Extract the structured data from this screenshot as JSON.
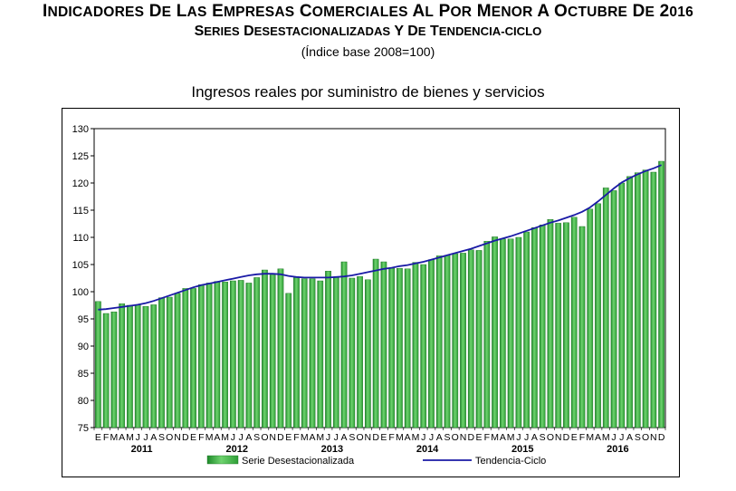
{
  "header": {
    "title": "Indicadores de las Empresas Comerciales al por Menor a octubre de 2016",
    "subtitle": "Series desestacionalizadas y de tendencia-ciclo",
    "base": "(Índice base 2008=100)"
  },
  "colors": {
    "bar": "#3cb043",
    "line": "#1a1aa6",
    "plot_bg": "#ffffff",
    "grid": "#000000"
  },
  "chart_data": {
    "type": "bar",
    "title": "Ingresos reales por suministro de bienes y servicios",
    "xlabel": "",
    "ylabel": "",
    "ylim": [
      75,
      130
    ],
    "yticks": [
      75,
      80,
      85,
      90,
      95,
      100,
      105,
      110,
      115,
      120,
      125,
      130
    ],
    "grid": false,
    "legend_position": "bottom",
    "month_labels": [
      "E",
      "F",
      "M",
      "A",
      "M",
      "J",
      "J",
      "A",
      "S",
      "O",
      "N",
      "D"
    ],
    "years": [
      "2011",
      "2012",
      "2013",
      "2014",
      "2015",
      "2016"
    ],
    "series": [
      {
        "name": "Serie Desestacionalizada",
        "kind": "bar",
        "values": [
          98.2,
          96.0,
          96.3,
          97.8,
          97.5,
          97.6,
          97.3,
          97.6,
          98.9,
          99.0,
          99.7,
          100.6,
          100.6,
          101.3,
          101.6,
          101.9,
          101.8,
          102.0,
          102.1,
          101.6,
          102.6,
          104.0,
          103.1,
          104.2,
          99.7,
          102.6,
          102.4,
          102.4,
          102.0,
          103.8,
          102.7,
          105.5,
          102.5,
          102.8,
          102.2,
          106.0,
          105.5,
          104.3,
          104.3,
          104.2,
          105.4,
          105.0,
          105.9,
          106.6,
          106.7,
          107.0,
          107.1,
          107.7,
          107.6,
          109.3,
          110.1,
          109.7,
          109.7,
          110.0,
          111.0,
          111.8,
          112.3,
          113.3,
          112.6,
          112.7,
          113.7,
          112.0,
          115.2,
          116.2,
          119.1,
          118.6,
          120.0,
          121.2,
          121.9,
          122.4,
          122.0,
          124.0
        ]
      },
      {
        "name": "Tendencia-Ciclo",
        "kind": "line",
        "values": [
          96.7,
          96.8,
          97.0,
          97.2,
          97.4,
          97.6,
          97.9,
          98.3,
          98.8,
          99.3,
          99.8,
          100.3,
          100.8,
          101.2,
          101.5,
          101.8,
          102.1,
          102.4,
          102.7,
          103.0,
          103.2,
          103.3,
          103.3,
          103.2,
          102.9,
          102.7,
          102.6,
          102.6,
          102.6,
          102.6,
          102.7,
          102.8,
          103.0,
          103.3,
          103.6,
          103.9,
          104.2,
          104.4,
          104.7,
          104.9,
          105.2,
          105.5,
          105.9,
          106.3,
          106.7,
          107.1,
          107.5,
          107.9,
          108.4,
          108.9,
          109.4,
          109.8,
          110.2,
          110.7,
          111.2,
          111.7,
          112.2,
          112.7,
          113.1,
          113.6,
          114.1,
          114.7,
          115.5,
          116.6,
          117.8,
          119.0,
          120.1,
          120.9,
          121.6,
          122.2,
          122.7,
          123.3
        ]
      }
    ]
  }
}
